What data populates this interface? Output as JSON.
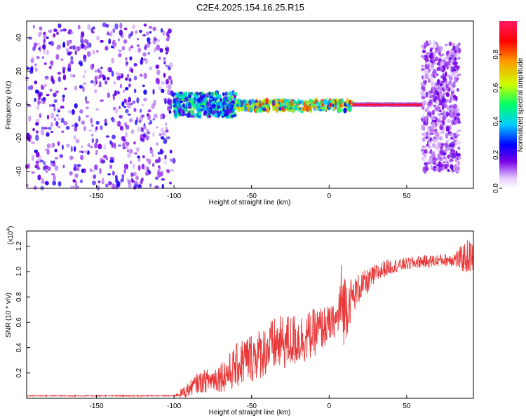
{
  "title": "C2E4.2025.154.16.25.R15",
  "chart_data": [
    {
      "type": "heatmap",
      "xlabel": "Height of straight line (km)",
      "ylabel": "Frequency (Hz)",
      "xlim": [
        -195,
        93
      ],
      "ylim": [
        -50,
        50
      ],
      "x_ticks": [
        -150,
        -100,
        -50,
        0,
        50
      ],
      "y_ticks": [
        -40,
        -20,
        0,
        20,
        40
      ],
      "colorbar": {
        "label": "Normalized spectral amplitude",
        "range": [
          0,
          1
        ],
        "ticks": [
          "0.0",
          "0.2",
          "0.4",
          "0.6",
          "0.8"
        ],
        "colormap": [
          "#ffffff",
          "#e6ccff",
          "#7a00e6",
          "#0000ff",
          "#00ccff",
          "#00ff66",
          "#ccff00",
          "#ff9900",
          "#ff0000",
          "#ff1a66"
        ]
      },
      "description_regions": [
        {
          "x_range": [
            -195,
            -100
          ],
          "f_range": [
            -50,
            48
          ],
          "pattern": "dense scattered noise",
          "amplitude": 0.2
        },
        {
          "x_range": [
            -100,
            -60
          ],
          "f_range": [
            -8,
            8
          ],
          "pattern": "band around 0 Hz",
          "amplitude": 0.45
        },
        {
          "x_range": [
            -60,
            15
          ],
          "f_range": [
            -4,
            3
          ],
          "pattern": "narrowing band",
          "amplitude": 0.7
        },
        {
          "x_range": [
            15,
            60
          ],
          "f_range": [
            -1,
            1
          ],
          "pattern": "line at 0 Hz",
          "amplitude": 1.0
        },
        {
          "x_range": [
            60,
            84
          ],
          "f_range": [
            -40,
            37
          ],
          "pattern": "scattered noise",
          "amplitude": 0.15
        }
      ]
    },
    {
      "type": "line",
      "xlabel": "Height of straight line (km)",
      "ylabel": "SNR (10 * v/v)",
      "y_multiplier": "(x10",
      "y_multiplier_exp": "4",
      "y_multiplier_close": ")",
      "xlim": [
        -195,
        93
      ],
      "ylim": [
        0,
        1.32
      ],
      "x_ticks": [
        -150,
        -100,
        -50,
        0,
        50
      ],
      "y_ticks": [
        "0.2",
        "0.4",
        "0.6",
        "0.8",
        "1.0",
        "1.2"
      ],
      "color": "#e8393a",
      "series": [
        {
          "x": [
            -195,
            -150,
            -100,
            -93,
            -85,
            -75,
            -65,
            -55,
            -45,
            -35,
            -25,
            -15,
            -5,
            0,
            5,
            8,
            10,
            15,
            20,
            25,
            30,
            35,
            40,
            45,
            50,
            55,
            60,
            65,
            70,
            75,
            80,
            85,
            90,
            93
          ],
          "y": [
            0.02,
            0.02,
            0.02,
            0.05,
            0.12,
            0.15,
            0.2,
            0.3,
            0.35,
            0.42,
            0.45,
            0.48,
            0.55,
            0.58,
            0.62,
            0.75,
            0.72,
            0.8,
            0.88,
            0.92,
            0.98,
            1.02,
            1.04,
            1.05,
            1.06,
            1.07,
            1.08,
            1.08,
            1.09,
            1.09,
            1.1,
            1.1,
            1.12,
            1.1
          ],
          "spread": [
            0.005,
            0.005,
            0.005,
            0.05,
            0.08,
            0.1,
            0.15,
            0.2,
            0.2,
            0.22,
            0.22,
            0.2,
            0.18,
            0.15,
            0.12,
            0.35,
            0.3,
            0.14,
            0.12,
            0.1,
            0.08,
            0.07,
            0.06,
            0.05,
            0.05,
            0.05,
            0.05,
            0.05,
            0.05,
            0.05,
            0.06,
            0.1,
            0.15,
            0.12
          ]
        }
      ]
    }
  ]
}
